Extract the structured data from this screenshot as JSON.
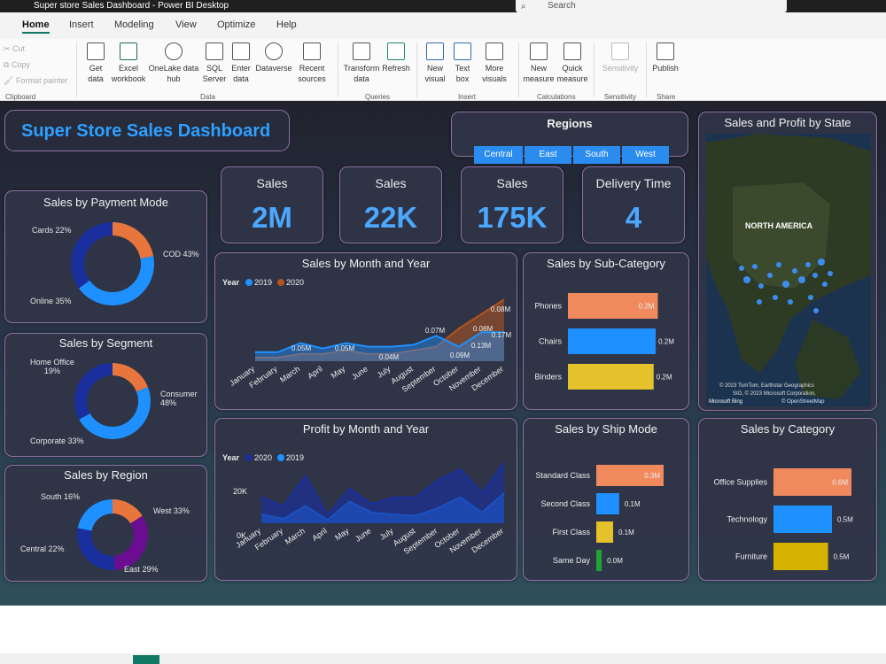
{
  "window": {
    "title": "Super store Sales Dashboard - Power BI Desktop",
    "search": "Search"
  },
  "tabs": [
    "Home",
    "Insert",
    "Modeling",
    "View",
    "Optimize",
    "Help"
  ],
  "ribbon": {
    "clipboard": {
      "cut": "Cut",
      "copy": "Copy",
      "format_painter": "Format painter",
      "group": "Clipboard"
    },
    "data": {
      "get_data": "Get data",
      "excel": "Excel workbook",
      "onelake": "OneLake data hub",
      "sql": "SQL Server",
      "enter": "Enter data",
      "dataverse": "Dataverse",
      "recent": "Recent sources",
      "group": "Data"
    },
    "queries": {
      "transform": "Transform data",
      "refresh": "Refresh",
      "group": "Queries"
    },
    "insert": {
      "new_visual": "New visual",
      "text_box": "Text box",
      "more_visuals": "More visuals",
      "group": "Insert"
    },
    "calculations": {
      "new_measure": "New measure",
      "quick_measure": "Quick measure",
      "group": "Calculations"
    },
    "sensitivity": {
      "sensitivity": "Sensitivity",
      "group": "Sensitivity"
    },
    "share": {
      "publish": "Publish",
      "group": "Share"
    }
  },
  "dashboard": {
    "title": "Super Store Sales Dashboard",
    "regions": {
      "title": "Regions",
      "options": [
        "Central",
        "East",
        "South",
        "West"
      ]
    },
    "map": {
      "title": "Sales and Profit by State",
      "region_label": "NORTH AMERICA",
      "credit1": "© 2023 TomTom, Earthstar Geographics",
      "credit2": "SIO, © 2023 Microsoft Corporation,",
      "credit3": "© OpenStreetMap",
      "bing": "Microsoft Bing"
    },
    "kpis": [
      {
        "label": "Sales",
        "value": "2M"
      },
      {
        "label": "Sales",
        "value": "22K"
      },
      {
        "label": "Sales",
        "value": "175K"
      },
      {
        "label": "Delivery Time",
        "value": "4"
      }
    ],
    "payment_mode": {
      "title": "Sales by Payment Mode",
      "labels": [
        "Cards 22%",
        "COD 43%",
        "Online 35%"
      ],
      "values": [
        22,
        43,
        35
      ],
      "colors": [
        "#e8763c",
        "#1e90ff",
        "#1a2f9e"
      ]
    },
    "segment": {
      "title": "Sales by Segment",
      "labels": [
        "Home Office\n19%",
        "Consumer\n48%",
        "Corporate 33%"
      ],
      "values": [
        19,
        48,
        33
      ],
      "colors": [
        "#e8763c",
        "#1e90ff",
        "#1a2f9e"
      ]
    },
    "region": {
      "title": "Sales by Region",
      "labels": [
        "South 16%",
        "West 33%",
        "East 29%",
        "Central 22%"
      ],
      "values": [
        16,
        33,
        29,
        22
      ],
      "colors": [
        "#e8763c",
        "#6a0d91",
        "#1a2f9e",
        "#1e90ff"
      ]
    },
    "sub_category": {
      "title": "Sales by Sub-Category",
      "items": [
        {
          "name": "Phones",
          "value": "0.2M",
          "fill": 0.86,
          "color": "#f08a5d"
        },
        {
          "name": "Chairs",
          "value": "0.2M",
          "fill": 0.84,
          "color": "#1e90ff"
        },
        {
          "name": "Binders",
          "value": "0.2M",
          "fill": 0.82,
          "color": "#e5c12c"
        }
      ]
    },
    "ship_mode": {
      "title": "Sales by Ship Mode",
      "items": [
        {
          "name": "Standard Class",
          "value": "0.3M",
          "fill": 1.0,
          "color": "#f08a5d"
        },
        {
          "name": "Second Class",
          "value": "0.1M",
          "fill": 0.34,
          "color": "#1e90ff"
        },
        {
          "name": "First Class",
          "value": "0.1M",
          "fill": 0.25,
          "color": "#e5c12c"
        },
        {
          "name": "Same Day",
          "value": "0.0M",
          "fill": 0.08,
          "color": "#22a233"
        }
      ]
    },
    "category": {
      "title": "Sales by Category",
      "items": [
        {
          "name": "Office Supplies",
          "value": "0.6M",
          "fill": 1.0,
          "color": "#f08a5d"
        },
        {
          "name": "Technology",
          "value": "0.5M",
          "fill": 0.75,
          "color": "#1e90ff"
        },
        {
          "name": "Furniture",
          "value": "0.5M",
          "fill": 0.7,
          "color": "#d4b300"
        }
      ]
    }
  },
  "chart_data": [
    {
      "type": "area",
      "title": "Sales by Month and Year",
      "legend_title": "Year",
      "legend": "top-left",
      "categories": [
        "January",
        "February",
        "March",
        "April",
        "May",
        "June",
        "July",
        "August",
        "September",
        "October",
        "November",
        "December"
      ],
      "series": [
        {
          "name": "2020",
          "color": "#b5541f",
          "values": [
            0.01,
            0.01,
            0.02,
            0.02,
            0.03,
            0.02,
            0.02,
            0.03,
            0.04,
            0.09,
            0.13,
            0.17
          ]
        },
        {
          "name": "2019",
          "color": "#1e90ff",
          "values": [
            0.025,
            0.025,
            0.05,
            0.035,
            0.05,
            0.04,
            0.04,
            0.045,
            0.07,
            0.04,
            0.08,
            0.08
          ]
        }
      ],
      "data_labels": [
        "0.05M",
        "0.05M",
        "0.04M",
        "0.07M",
        "0.09M",
        "0.08M",
        "0.13M",
        "0.08M",
        "0.17M"
      ],
      "ylim": [
        0,
        0.2
      ]
    },
    {
      "type": "area",
      "title": "Profit by Month and Year",
      "legend_title": "Year",
      "legend": "top-left",
      "categories": [
        "January",
        "February",
        "March",
        "April",
        "May",
        "June",
        "July",
        "August",
        "September",
        "October",
        "November",
        "December"
      ],
      "yticks": [
        "20K",
        "0K"
      ],
      "series": [
        {
          "name": "2019",
          "color": "#1e90ff",
          "values": [
            4000,
            2000,
            8000,
            1500,
            10000,
            5000,
            4000,
            3500,
            7000,
            12000,
            5000,
            14000
          ]
        },
        {
          "name": "2020",
          "color": "#1a2f9e",
          "values": [
            12000,
            8000,
            22000,
            4000,
            16000,
            9000,
            12000,
            12000,
            20000,
            25000,
            14000,
            28000
          ]
        }
      ],
      "ylim": [
        0,
        32000
      ]
    }
  ]
}
